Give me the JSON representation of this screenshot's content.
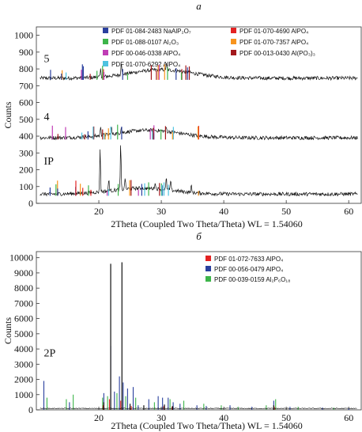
{
  "chart_data": [
    {
      "type": "line",
      "panel_label": "а",
      "xlabel": "2Theta (Coupled Two Theta/Theta) WL = 1.54060",
      "ylabel": "Counts",
      "xlim": [
        10,
        62
      ],
      "ylim": [
        0,
        1050
      ],
      "x_ticks": [
        20,
        30,
        40,
        50,
        60
      ],
      "y_ticks": [
        0,
        100,
        200,
        300,
        400,
        500,
        600,
        700,
        800,
        900,
        1000
      ],
      "curve_labels": [
        {
          "text": "5",
          "x": 11.2,
          "y": 840
        },
        {
          "text": "4",
          "x": 11.2,
          "y": 495
        },
        {
          "text": "IP",
          "x": 11.2,
          "y": 230
        }
      ],
      "legend": [
        {
          "text": "PDF 01-084-2483 NaAlP₂O₇",
          "color": "#2a3f9e"
        },
        {
          "text": "PDF 01-070-4690 AlPO₄",
          "color": "#e32222"
        },
        {
          "text": "PDF 01-088-0107 Al₂O₃",
          "color": "#3db54a"
        },
        {
          "text": "PDF 01-070-7357 AlPO₄",
          "color": "#f7941d"
        },
        {
          "text": "PDF 00-046-0338 AlPO₄",
          "color": "#c03db5"
        },
        {
          "text": "PDF 00-013-0430 Al(PO₃)₃",
          "color": "#a3191c"
        },
        {
          "text": "PDF 01-070-6292 AlPO₄",
          "color": "#4ec3e0"
        }
      ],
      "series": [
        {
          "name": "5",
          "baseline": 745,
          "hump_center": 30,
          "hump_height": 50,
          "peaks": [
            [
              20.3,
              45
            ],
            [
              23.6,
              80
            ],
            [
              30.8,
              40
            ]
          ]
        },
        {
          "name": "4",
          "baseline": 390,
          "hump_center": 28,
          "hump_height": 45,
          "peaks": [
            [
              20.3,
              60
            ],
            [
              22.0,
              40
            ],
            [
              23.6,
              40
            ],
            [
              30.8,
              25
            ]
          ]
        },
        {
          "name": "IP",
          "baseline": 55,
          "hump_center": 27,
          "hump_height": 35,
          "peaks": [
            [
              20.2,
              260
            ],
            [
              21.6,
              70
            ],
            [
              23.5,
              270
            ],
            [
              24.2,
              70
            ],
            [
              29.0,
              40
            ],
            [
              30.8,
              70
            ],
            [
              31.5,
              60
            ],
            [
              34.8,
              40
            ]
          ]
        }
      ]
    },
    {
      "type": "bar",
      "panel_label": "б",
      "xlabel": "2Theta (Coupled Two Theta/Theta) WL = 1.54060",
      "ylabel": "Counts",
      "xlim": [
        10,
        62
      ],
      "ylim": [
        0,
        10400
      ],
      "x_ticks": [
        20,
        30,
        40,
        50,
        60
      ],
      "y_ticks": [
        0,
        1000,
        2000,
        3000,
        4000,
        5000,
        6000,
        7000,
        8000,
        9000,
        10000
      ],
      "curve_labels": [
        {
          "text": "2P",
          "x": 11.2,
          "y": 3500
        }
      ],
      "legend": [
        {
          "text": "PDF 01-072-7633 AlPO₄",
          "color": "#e32222"
        },
        {
          "text": "PDF 00-056-0479 AlPO₄",
          "color": "#2a3f9e"
        },
        {
          "text": "PDF 00-039-0159 Al₂P₆O₁₈",
          "color": "#3db54a"
        }
      ],
      "black_peaks": [
        [
          21.9,
          9600
        ],
        [
          23.7,
          9700
        ],
        [
          20.8,
          500
        ],
        [
          25.0,
          400
        ],
        [
          27.2,
          300
        ],
        [
          30.5,
          350
        ],
        [
          31.8,
          250
        ],
        [
          48.0,
          300
        ]
      ],
      "red_peaks": [
        [
          21.7,
          700
        ],
        [
          23.5,
          600
        ],
        [
          20.7,
          300
        ],
        [
          25.2,
          250
        ],
        [
          30.4,
          250
        ],
        [
          31.7,
          200
        ],
        [
          48.1,
          200
        ]
      ],
      "blue_peaks": [
        [
          11.2,
          1900
        ],
        [
          15.3,
          500
        ],
        [
          20.8,
          1100
        ],
        [
          21.9,
          4200
        ],
        [
          22.5,
          1200
        ],
        [
          23.3,
          2200
        ],
        [
          23.9,
          1800
        ],
        [
          24.6,
          1400
        ],
        [
          25.5,
          1500
        ],
        [
          26.3,
          300
        ],
        [
          28.0,
          700
        ],
        [
          29.5,
          900
        ],
        [
          30.2,
          800
        ],
        [
          31.1,
          800
        ],
        [
          31.9,
          500
        ],
        [
          33.0,
          400
        ],
        [
          35.7,
          300
        ],
        [
          37.2,
          250
        ],
        [
          41.0,
          300
        ],
        [
          44.5,
          200
        ],
        [
          48.0,
          600
        ],
        [
          50.6,
          200
        ],
        [
          55.8,
          150
        ],
        [
          60.0,
          100
        ]
      ],
      "green_peaks": [
        [
          11.7,
          800
        ],
        [
          14.8,
          700
        ],
        [
          15.9,
          1000
        ],
        [
          20.6,
          800
        ],
        [
          21.4,
          900
        ],
        [
          22.9,
          1100
        ],
        [
          24.3,
          900
        ],
        [
          25.9,
          800
        ],
        [
          28.9,
          500
        ],
        [
          31.4,
          700
        ],
        [
          33.6,
          600
        ],
        [
          36.8,
          400
        ],
        [
          39.6,
          300
        ],
        [
          42.3,
          200
        ],
        [
          46.8,
          300
        ],
        [
          48.3,
          700
        ],
        [
          51.9,
          200
        ],
        [
          57.6,
          150
        ]
      ]
    }
  ]
}
